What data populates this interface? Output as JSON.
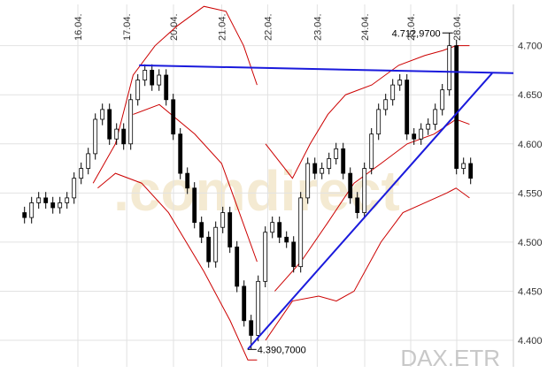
{
  "chart_data": {
    "type": "candlestick",
    "source": "DAX.ETR",
    "watermark": ".comdirect",
    "high_label": "4.712,9700",
    "low_label": "4.390,7000",
    "xlim": [
      -3.4,
      69.1
    ],
    "ylim": [
      4373,
      4742
    ],
    "grid": true,
    "xticks": [
      {
        "value": 7.6,
        "label": "16.04."
      },
      {
        "value": 14.5,
        "label": "17.04."
      },
      {
        "value": 21.1,
        "label": "20.04."
      },
      {
        "value": 27.9,
        "label": "21.04."
      },
      {
        "value": 34.4,
        "label": "22.04."
      },
      {
        "value": 41.4,
        "label": "23.04."
      },
      {
        "value": 48.1,
        "label": "24.04."
      },
      {
        "value": 54.6,
        "label": "25.04."
      },
      {
        "value": 61.1,
        "label": "28.04."
      }
    ],
    "yticks": [
      {
        "value": 4400,
        "label": "4.400"
      },
      {
        "value": 4450,
        "label": "4.450"
      },
      {
        "value": 4500,
        "label": "4.500"
      },
      {
        "value": 4550,
        "label": "4.550"
      },
      {
        "value": 4600,
        "label": "4.600"
      },
      {
        "value": 4650,
        "label": "4.650"
      },
      {
        "value": 4700,
        "label": "4.700"
      }
    ],
    "up_color": "#ffffff",
    "down_color": "#000000",
    "open": [
      4530,
      4525,
      4540,
      4545,
      4540,
      4535,
      4540,
      4545,
      4565,
      4575,
      4590,
      4625,
      4635,
      4605,
      4615,
      4600,
      4645,
      4665,
      4675,
      4660,
      4670,
      4645,
      4610,
      4570,
      4555,
      4520,
      4505,
      4480,
      4515,
      4530,
      4495,
      4455,
      4420,
      4405,
      4460,
      4510,
      4520,
      4505,
      4500,
      4475,
      4545,
      4580,
      4570,
      4575,
      4585,
      4595,
      4570,
      4545,
      4530,
      4575,
      4610,
      4635,
      4645,
      4660,
      4665,
      4610,
      4605,
      4615,
      4620,
      4635,
      4655,
      4700,
      4575,
      4580
    ],
    "high": [
      4536,
      4546,
      4551,
      4551,
      4546,
      4546,
      4551,
      4571,
      4581,
      4596,
      4631,
      4641,
      4641,
      4621,
      4621,
      4651,
      4671,
      4681,
      4681,
      4676,
      4676,
      4651,
      4616,
      4576,
      4561,
      4526,
      4511,
      4521,
      4536,
      4536,
      4501,
      4461,
      4426,
      4466,
      4516,
      4526,
      4526,
      4511,
      4506,
      4551,
      4586,
      4586,
      4581,
      4591,
      4601,
      4601,
      4576,
      4551,
      4581,
      4616,
      4641,
      4651,
      4666,
      4671,
      4671,
      4616,
      4621,
      4626,
      4641,
      4661,
      4712.97,
      4706,
      4586,
      4586
    ],
    "low": [
      4519,
      4519,
      4534,
      4534,
      4529,
      4529,
      4534,
      4539,
      4559,
      4569,
      4584,
      4619,
      4599,
      4599,
      4594,
      4594,
      4639,
      4659,
      4654,
      4654,
      4639,
      4604,
      4564,
      4549,
      4514,
      4499,
      4474,
      4474,
      4509,
      4489,
      4449,
      4414,
      4390.7,
      4399,
      4454,
      4504,
      4499,
      4494,
      4469,
      4469,
      4539,
      4564,
      4564,
      4569,
      4579,
      4564,
      4539,
      4524,
      4524,
      4569,
      4604,
      4629,
      4639,
      4654,
      4604,
      4599,
      4599,
      4609,
      4614,
      4629,
      4649,
      4569,
      4569,
      4559
    ],
    "close": [
      4525,
      4540,
      4545,
      4540,
      4535,
      4540,
      4545,
      4565,
      4575,
      4590,
      4625,
      4635,
      4605,
      4615,
      4600,
      4645,
      4665,
      4675,
      4660,
      4670,
      4645,
      4610,
      4570,
      4555,
      4520,
      4505,
      4480,
      4515,
      4530,
      4495,
      4455,
      4420,
      4405,
      4460,
      4510,
      4520,
      4505,
      4500,
      4475,
      4545,
      4580,
      4570,
      4575,
      4585,
      4595,
      4570,
      4545,
      4530,
      4575,
      4610,
      4635,
      4645,
      4660,
      4665,
      4610,
      4605,
      4615,
      4620,
      4635,
      4655,
      4700,
      4575,
      4580,
      4565
    ],
    "bands": [
      {
        "color": "#cc0000",
        "x": [
          9.75,
          12.9,
          15.4,
          18.5,
          21.6,
          25.4,
          28.5,
          31,
          32.9,
          33.5,
          34.1,
          37.9,
          40.4,
          42.9,
          45.4,
          49.1,
          52.9,
          56.6,
          59.1,
          61,
          62.9
        ],
        "values": [
          4560,
          4600,
          4670,
          4700,
          4720,
          4740,
          4735,
          4700,
          4660,
          null,
          4600,
          4565,
          4600,
          4630,
          4650,
          4660,
          4680,
          4690,
          4695,
          4700,
          4700
        ]
      },
      {
        "color": "#cc0000",
        "x": [
          15.4,
          19.1,
          24.1,
          27.9,
          30.4,
          32.9,
          34,
          35.4,
          39.1,
          42.9,
          46.6,
          50.4,
          54.1,
          57.9,
          61,
          62.9
        ],
        "values": [
          4630,
          4640,
          4610,
          4580,
          4530,
          4480,
          null,
          4450,
          4480,
          4520,
          4560,
          4580,
          4600,
          4610,
          4625,
          4620
        ]
      },
      {
        "color": "#cc0000",
        "x": [
          10.4,
          12.9,
          16.6,
          20.4,
          25.4,
          29.1,
          31.6,
          32.9,
          33.5,
          34.1,
          37.9,
          41.6,
          44.1,
          46.6,
          50.4,
          53.5,
          56.6,
          59.7,
          61,
          62.9
        ],
        "values": [
          4555,
          4570,
          4560,
          4530,
          4470,
          4420,
          4380,
          4380,
          null,
          4400,
          4440,
          4445,
          4440,
          4450,
          4500,
          4530,
          4540,
          4550,
          4555,
          4545
        ]
      }
    ],
    "trend_lines": [
      {
        "color": "#1a1adc",
        "x": [
          16.25,
          69.1
        ],
        "values": [
          4680,
          4672
        ]
      },
      {
        "color": "#1a1adc",
        "x": [
          31.6,
          66.1
        ],
        "values": [
          4391,
          4672
        ]
      }
    ]
  }
}
